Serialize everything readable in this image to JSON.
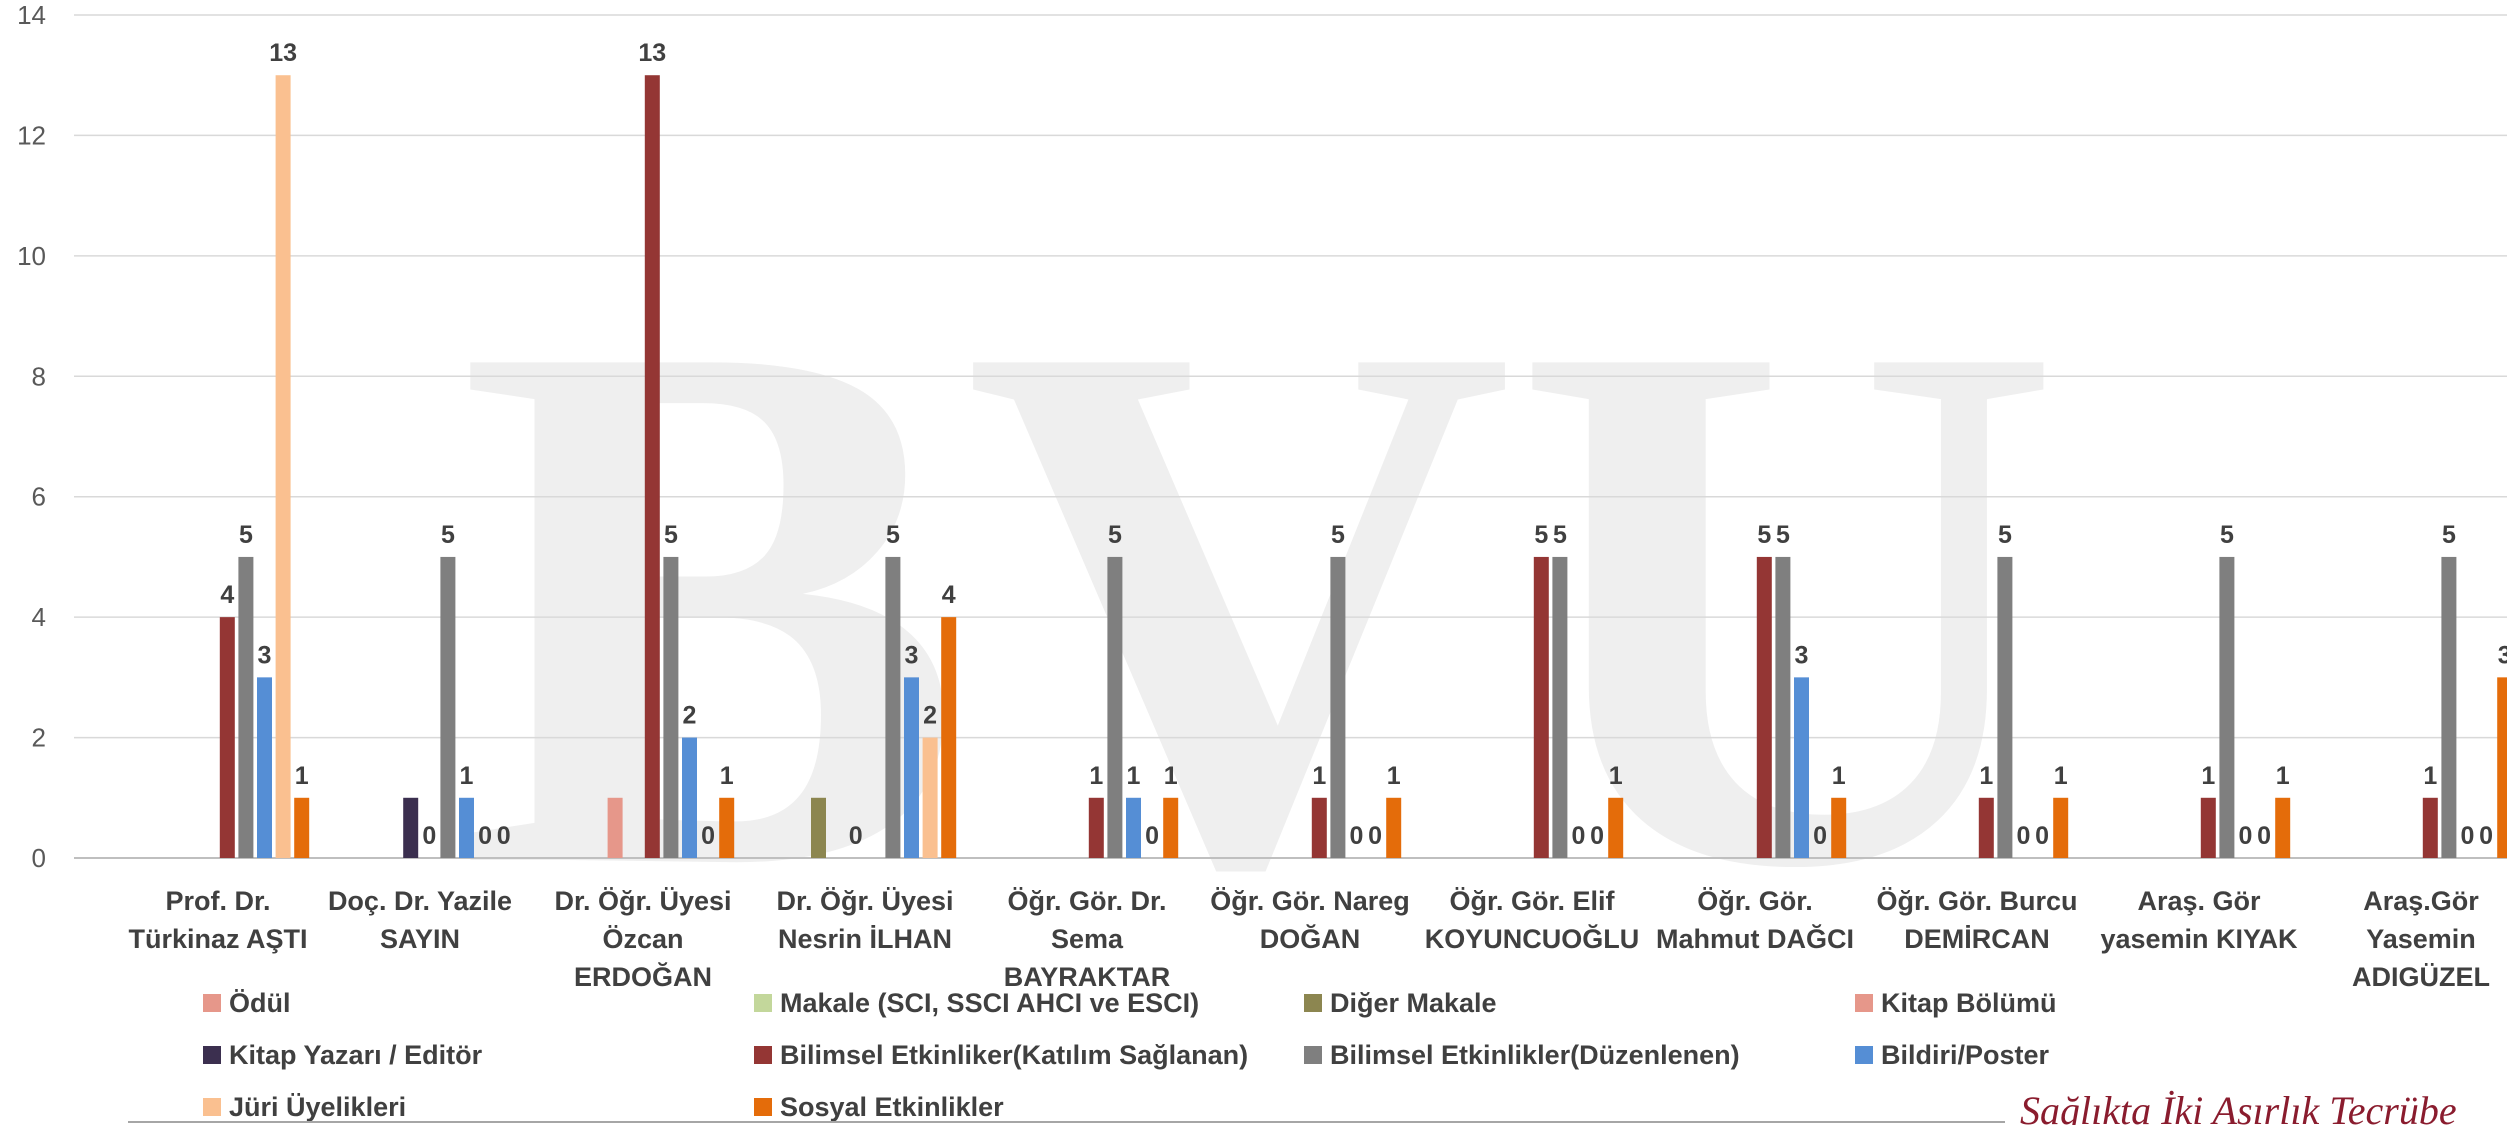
{
  "watermark": "BVU",
  "slogan": "Sağlıkta İki Asırlık Tecrübe",
  "chart_data": {
    "type": "bar",
    "title": "",
    "xlabel": "",
    "ylabel": "",
    "ylim": [
      0,
      14
    ],
    "yticks": [
      0,
      2,
      4,
      6,
      8,
      10,
      12,
      14
    ],
    "grid": true,
    "legend_position": "bottom",
    "categories": [
      [
        "Prof. Dr.",
        "Türkinaz AŞTI"
      ],
      [
        "Doç. Dr. Yazile",
        "SAYIN"
      ],
      [
        "Dr. Öğr. Üyesi",
        "Özcan",
        "ERDOĞAN"
      ],
      [
        "Dr. Öğr. Üyesi",
        "Nesrin İLHAN"
      ],
      [
        "Öğr. Gör. Dr.",
        "Sema",
        "BAYRAKTAR"
      ],
      [
        "Öğr. Gör. Nareg",
        "DOĞAN"
      ],
      [
        "Öğr. Gör. Elif",
        "KOYUNCUOĞLU"
      ],
      [
        "Öğr. Gör.",
        "Mahmut DAĞCI"
      ],
      [
        "Öğr. Gör. Burcu",
        "DEMİRCAN"
      ],
      [
        "Araş. Gör",
        "yasemin KIYAK"
      ],
      [
        "Araş.Gör",
        "Yasemin",
        "ADIGÜZEL"
      ]
    ],
    "series": [
      {
        "name": "Ödül",
        "color": "#e6978a",
        "values": [
          null,
          null,
          null,
          null,
          null,
          null,
          null,
          null,
          null,
          null,
          null
        ],
        "labels": [
          false,
          false,
          false,
          false,
          false,
          false,
          false,
          false,
          false,
          false,
          false
        ]
      },
      {
        "name": "Makale (SCI, SSCI AHCI ve ESCI)",
        "color": "#c3d79b",
        "values": [
          null,
          null,
          null,
          null,
          null,
          null,
          null,
          null,
          null,
          null,
          null
        ],
        "labels": [
          false,
          false,
          false,
          false,
          false,
          false,
          false,
          false,
          false,
          false,
          false
        ]
      },
      {
        "name": "Diğer Makale",
        "color": "#8c8650",
        "values": [
          null,
          null,
          null,
          1,
          null,
          null,
          null,
          null,
          null,
          null,
          null
        ],
        "labels": [
          false,
          false,
          false,
          false,
          false,
          false,
          false,
          false,
          false,
          false,
          false
        ]
      },
      {
        "name": "Kitap Bölümü",
        "color": "#e6978a",
        "values": [
          null,
          null,
          1,
          null,
          null,
          null,
          null,
          null,
          null,
          null,
          null
        ],
        "labels": [
          false,
          false,
          false,
          false,
          false,
          false,
          false,
          false,
          false,
          false,
          false
        ]
      },
      {
        "name": "Kitap Yazarı / Editör",
        "color": "#3b2f4f",
        "values": [
          null,
          1,
          null,
          0,
          null,
          null,
          null,
          null,
          null,
          null,
          null
        ],
        "labels": [
          false,
          false,
          false,
          true,
          false,
          false,
          false,
          false,
          false,
          false,
          false
        ]
      },
      {
        "name": "Bilimsel Etkinliker(Katılım Sağlanan)",
        "color": "#943634",
        "values": [
          4,
          0,
          13,
          null,
          1,
          1,
          5,
          5,
          1,
          1,
          1
        ],
        "labels": [
          true,
          true,
          true,
          false,
          true,
          true,
          true,
          true,
          true,
          true,
          true
        ]
      },
      {
        "name": "Bilimsel Etkinlikler(Düzenlenen)",
        "color": "#7f7f7f",
        "values": [
          5,
          5,
          5,
          5,
          5,
          5,
          5,
          5,
          5,
          5,
          5
        ],
        "labels": [
          true,
          true,
          true,
          true,
          true,
          true,
          true,
          true,
          true,
          true,
          true
        ]
      },
      {
        "name": "Bildiri/Poster",
        "color": "#558ed5",
        "values": [
          3,
          1,
          2,
          3,
          1,
          0,
          0,
          3,
          0,
          0,
          0
        ],
        "labels": [
          true,
          true,
          true,
          true,
          true,
          true,
          true,
          true,
          true,
          true,
          true
        ]
      },
      {
        "name": "Jüri Üyelikleri",
        "color": "#fac090",
        "values": [
          13,
          0,
          0,
          2,
          0,
          0,
          0,
          0,
          0,
          0,
          0
        ],
        "labels": [
          true,
          true,
          true,
          true,
          true,
          true,
          true,
          true,
          true,
          true,
          true
        ]
      },
      {
        "name": "Sosyal Etkinlikler",
        "color": "#e46c0a",
        "values": [
          1,
          0,
          1,
          4,
          1,
          1,
          1,
          1,
          1,
          1,
          3
        ],
        "labels": [
          true,
          true,
          true,
          true,
          true,
          true,
          true,
          true,
          true,
          true,
          true
        ]
      }
    ]
  }
}
